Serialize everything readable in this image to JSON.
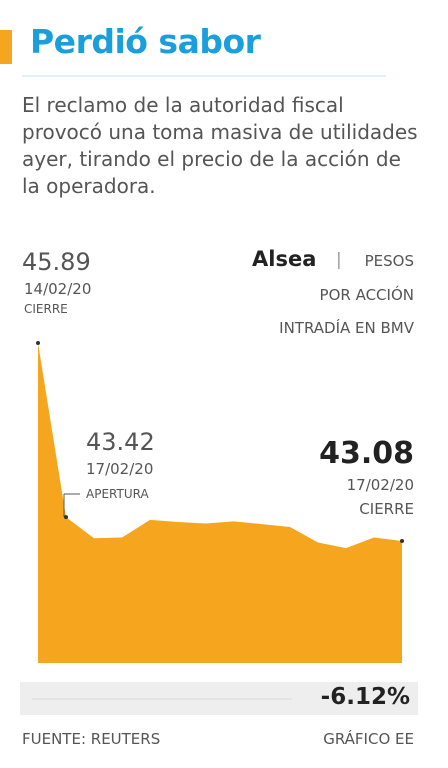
{
  "chart_data": {
    "type": "area",
    "title": "Perdió sabor",
    "subtitle": "El reclamo de la autoridad fiscal provocó una toma masiva de utilidades ayer, tirando el precio de la acción de la operadora.",
    "series_name": "Alsea",
    "unit": [
      "PESOS",
      "POR ACCIÓN",
      "INTRADÍA EN BMV"
    ],
    "categories": [
      null,
      null,
      null,
      null,
      null,
      null,
      null,
      null,
      null,
      null,
      null,
      null,
      null,
      null
    ],
    "values": [
      45.89,
      43.42,
      43.12,
      43.13,
      43.38,
      43.35,
      43.33,
      43.36,
      43.32,
      43.28,
      43.06,
      42.98,
      43.13,
      43.08
    ],
    "value_labels": [
      "45.89",
      "43.42",
      null,
      null,
      null,
      null,
      null,
      null,
      null,
      null,
      null,
      null,
      null,
      "43.08"
    ],
    "annotations": [
      {
        "date": "14/02/20",
        "note": "CIERRE"
      },
      {
        "date": "17/02/20",
        "note": "APERTURA"
      },
      {
        "date": "17/02/20",
        "note": "CIERRE"
      }
    ],
    "color": "#f6a61e",
    "ylim": [
      41.35,
      45.89
    ],
    "change": {
      "value": -6.12,
      "label": "-6.12%"
    },
    "source": "FUENTE: REUTERS",
    "credit": "GRÁFICO EE"
  }
}
